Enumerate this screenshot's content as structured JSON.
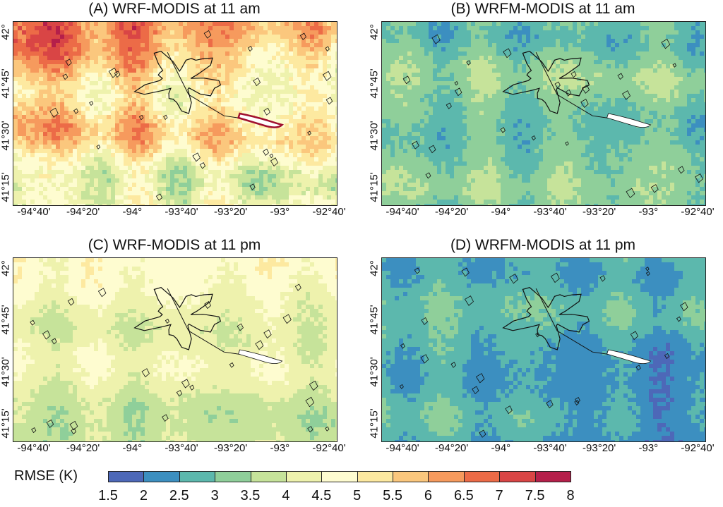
{
  "panels": [
    {
      "id": "A",
      "title": "(A) WRF-MODIS at 11 am",
      "mean": 5.0,
      "noise": 1.2,
      "gradient": "nw-hot"
    },
    {
      "id": "B",
      "title": "(B) WRFM-MODIS at 11 am",
      "mean": 3.1,
      "noise": 0.6,
      "gradient": "flat"
    },
    {
      "id": "C",
      "title": "(C) WRF-MODIS at 11 pm",
      "mean": 4.0,
      "noise": 0.5,
      "gradient": "n-warm"
    },
    {
      "id": "D",
      "title": "(D) WRFM-MODIS at 11 pm",
      "mean": 2.8,
      "noise": 0.5,
      "gradient": "se-cool"
    }
  ],
  "x_ticks": [
    "-94°40'",
    "-94°20'",
    "-94°",
    "-93°40'",
    "-93°20'",
    "-93°",
    "-92°40'"
  ],
  "y_ticks": [
    "42°",
    "41°45'",
    "41°30'",
    "41°15'"
  ],
  "colorbar": {
    "label": "RMSE (K)",
    "ticks": [
      "1.5",
      "2",
      "2.5",
      "3",
      "3.5",
      "4",
      "4.5",
      "5",
      "5.5",
      "6",
      "6.5",
      "7",
      "7.5",
      "8"
    ],
    "colors": [
      "#4d68b8",
      "#3c8fc0",
      "#5cb8ad",
      "#8fcf9a",
      "#c6e39a",
      "#eef2ad",
      "#fefcd0",
      "#fde9a0",
      "#fbc77d",
      "#f69a5d",
      "#ec6b47",
      "#d94545",
      "#b51f4a"
    ]
  }
}
